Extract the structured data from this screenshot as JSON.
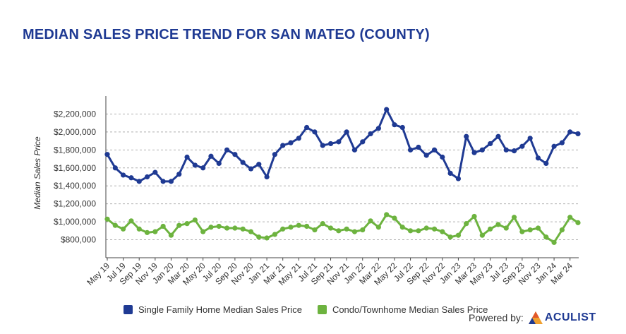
{
  "title": "MEDIAN SALES PRICE TREND FOR SAN MATEO (COUNTY)",
  "powered_by": "Powered by:",
  "logo_text": "ACULIST",
  "chart_data": {
    "type": "line",
    "ylabel": "Median Sales Price",
    "xlabel": "",
    "ylim": [
      600000,
      2400000
    ],
    "y_ticks": [
      "$800,000",
      "$1,000,000",
      "$1,200,000",
      "$1,400,000",
      "$1,600,000",
      "$1,800,000",
      "$2,000,000",
      "$2,200,000"
    ],
    "y_tick_values": [
      800000,
      1000000,
      1200000,
      1400000,
      1600000,
      1800000,
      2000000,
      2200000
    ],
    "grid": true,
    "legend_position": "bottom",
    "x_labels_shown": [
      "May 19",
      "Jul 19",
      "Sep 19",
      "Nov 19",
      "Jan 20",
      "Mar 20",
      "May 20",
      "Jul 20",
      "Sep 20",
      "Nov 20",
      "Jan 21",
      "Mar 21",
      "May 21",
      "Jul 21",
      "Sep 21",
      "Nov 21",
      "Jan 22",
      "Mar 22",
      "May 22",
      "Jul 22",
      "Sep 22",
      "Nov 22",
      "Jan 23",
      "Mar 23",
      "May 23",
      "Jul 23",
      "Sep 23",
      "Nov 23",
      "Jan 24",
      "Mar 24"
    ],
    "x": [
      "May 19",
      "Jun 19",
      "Jul 19",
      "Aug 19",
      "Sep 19",
      "Oct 19",
      "Nov 19",
      "Dec 19",
      "Jan 20",
      "Feb 20",
      "Mar 20",
      "Apr 20",
      "May 20",
      "Jun 20",
      "Jul 20",
      "Aug 20",
      "Sep 20",
      "Oct 20",
      "Nov 20",
      "Dec 20",
      "Jan 21",
      "Feb 21",
      "Mar 21",
      "Apr 21",
      "May 21",
      "Jun 21",
      "Jul 21",
      "Aug 21",
      "Sep 21",
      "Oct 21",
      "Nov 21",
      "Dec 21",
      "Jan 22",
      "Feb 22",
      "Mar 22",
      "Apr 22",
      "May 22",
      "Jun 22",
      "Jul 22",
      "Aug 22",
      "Sep 22",
      "Oct 22",
      "Nov 22",
      "Dec 22",
      "Jan 23",
      "Feb 23",
      "Mar 23",
      "Apr 23",
      "May 23",
      "Jun 23",
      "Jul 23",
      "Aug 23",
      "Sep 23",
      "Oct 23",
      "Nov 23",
      "Dec 23",
      "Jan 24",
      "Feb 24",
      "Mar 24",
      "Apr 24"
    ],
    "series": [
      {
        "name": "Single Family Home Median Sales Price",
        "color": "#1f3a93",
        "values": [
          1750000,
          1600000,
          1520000,
          1490000,
          1450000,
          1500000,
          1550000,
          1450000,
          1450000,
          1530000,
          1720000,
          1630000,
          1600000,
          1730000,
          1650000,
          1800000,
          1750000,
          1660000,
          1590000,
          1640000,
          1500000,
          1750000,
          1850000,
          1880000,
          1930000,
          2050000,
          2000000,
          1850000,
          1870000,
          1890000,
          2000000,
          1800000,
          1890000,
          1980000,
          2040000,
          2250000,
          2080000,
          2050000,
          1800000,
          1830000,
          1740000,
          1800000,
          1720000,
          1540000,
          1480000,
          1950000,
          1770000,
          1800000,
          1870000,
          1950000,
          1800000,
          1790000,
          1840000,
          1930000,
          1710000,
          1650000,
          1840000,
          1880000,
          2000000,
          1980000
        ]
      },
      {
        "name": "Condo/Townhome Median Sales Price",
        "color": "#6db33f",
        "values": [
          1030000,
          960000,
          920000,
          1010000,
          920000,
          880000,
          890000,
          950000,
          850000,
          960000,
          980000,
          1020000,
          890000,
          940000,
          950000,
          930000,
          930000,
          920000,
          890000,
          830000,
          820000,
          860000,
          920000,
          940000,
          960000,
          950000,
          910000,
          980000,
          930000,
          900000,
          920000,
          890000,
          910000,
          1010000,
          940000,
          1080000,
          1040000,
          940000,
          900000,
          900000,
          930000,
          920000,
          890000,
          830000,
          850000,
          980000,
          1060000,
          850000,
          920000,
          970000,
          930000,
          1050000,
          890000,
          910000,
          930000,
          830000,
          770000,
          910000,
          1050000,
          990000
        ]
      }
    ]
  }
}
